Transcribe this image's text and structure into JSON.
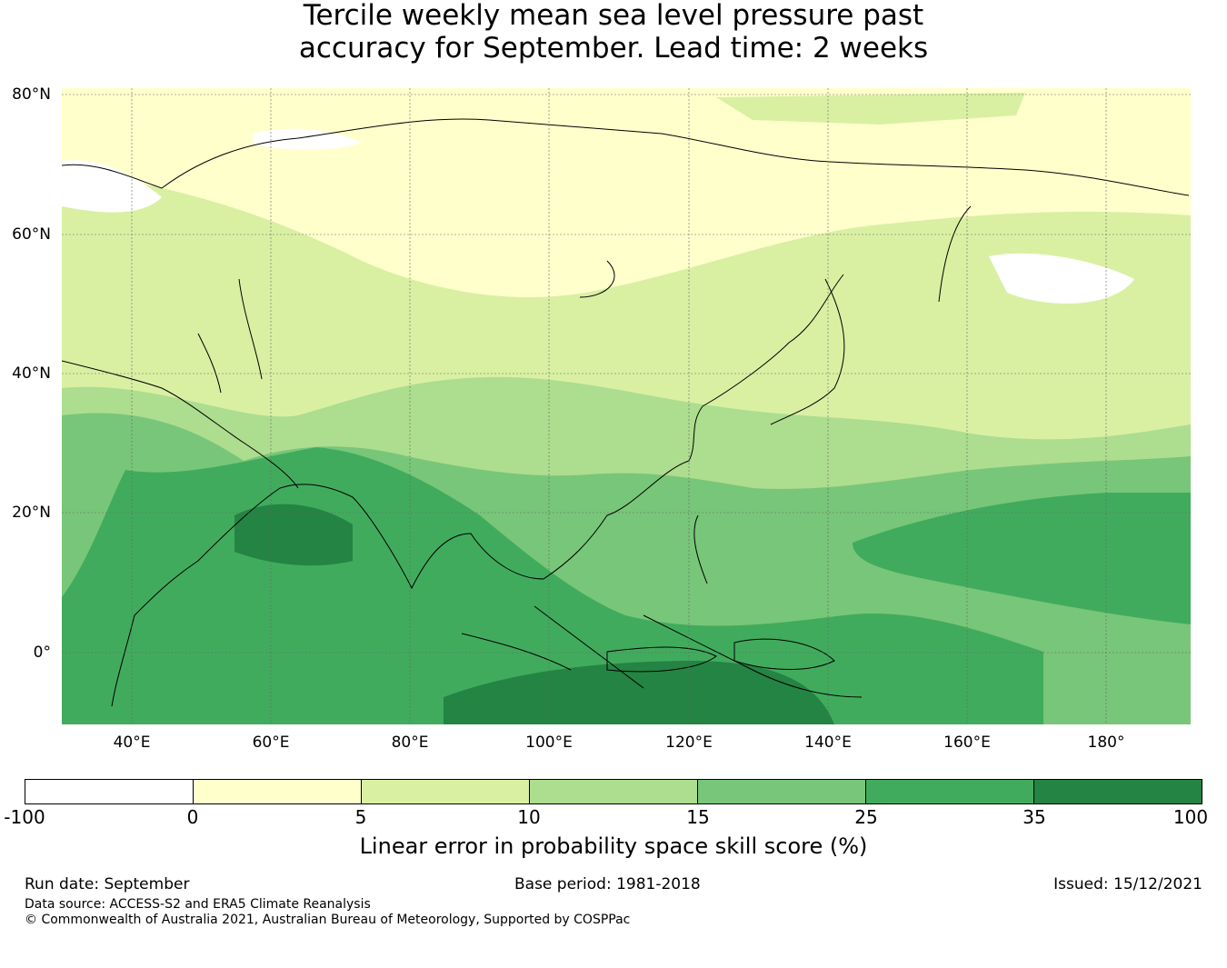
{
  "title": {
    "line1": "Tercile weekly mean sea level pressure past",
    "line2": "accuracy for September. Lead time: 2 weeks"
  },
  "map": {
    "lat_labels": [
      "80°N",
      "60°N",
      "40°N",
      "20°N",
      "0°"
    ],
    "lon_labels": [
      "40°E",
      "60°E",
      "80°E",
      "100°E",
      "120°E",
      "140°E",
      "160°E",
      "180°"
    ],
    "colors": {
      "neg": "#ffffff",
      "c0_5": "#ffffcc",
      "c5_10": "#d9f0a3",
      "c10_15": "#addd8e",
      "c15_25": "#78c679",
      "c25_35": "#41ab5d",
      "c35_100": "#238443"
    }
  },
  "colorbar": {
    "ticks": [
      "-100",
      "0",
      "5",
      "10",
      "15",
      "25",
      "35",
      "100"
    ],
    "colors": [
      "#ffffff",
      "#ffffcc",
      "#d9f0a3",
      "#addd8e",
      "#78c679",
      "#41ab5d",
      "#238443"
    ],
    "label": "Linear error in probability space skill score (%)"
  },
  "footer": {
    "run_date": "Run date: September",
    "base_period": "Base period: 1981-2018",
    "issued": "Issued: 15/12/2021",
    "data_source": "Data source: ACCESS-S2 and ERA5 Climate Reanalysis",
    "copyright": "© Commonwealth of Australia 2021, Australian Bureau of Meteorology, Supported by COSPPac"
  }
}
